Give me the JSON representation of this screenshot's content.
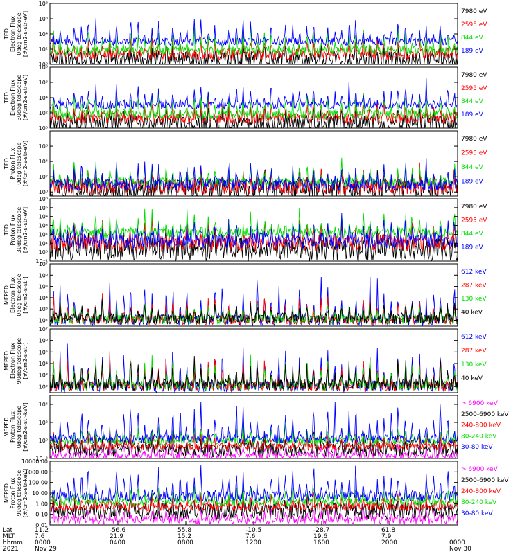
{
  "colors": {
    "black": "#000000",
    "red": "#ff0000",
    "green": "#00dd00",
    "blue": "#0000ff",
    "magenta": "#ff00ff"
  },
  "chart_data": [
    {
      "type": "line",
      "log_scale": true,
      "ylabel_lines": [
        "TED",
        "Electron Flux",
        "0deg telescope",
        "[#/cm2-s-str-eV]"
      ],
      "yticks": [
        {
          "v": 1,
          "t": "10⁰"
        },
        {
          "v": 100,
          "t": "10²"
        },
        {
          "v": 10000,
          "t": "10⁴"
        },
        {
          "v": 1000000,
          "t": "10⁶"
        },
        {
          "v": 100000000,
          "t": "10⁸"
        }
      ],
      "ylim": [
        1,
        100000000
      ],
      "series": [
        {
          "name": "7980 eV",
          "color": "black",
          "base": 3,
          "peak": 300,
          "noise": 1.2
        },
        {
          "name": "2595 eV",
          "color": "red",
          "base": 20,
          "peak": 5000,
          "noise": 0.7
        },
        {
          "name": "844 eV",
          "color": "green",
          "base": 60,
          "peak": 100000,
          "noise": 0.6
        },
        {
          "name": "189 eV",
          "color": "blue",
          "base": 1000,
          "peak": 1000000,
          "noise": 0.5
        }
      ]
    },
    {
      "type": "line",
      "log_scale": true,
      "ylabel_lines": [
        "TED",
        "Electron Flux",
        "30deg telescope",
        "[#/cm2-s-str-eV]"
      ],
      "yticks": [
        {
          "v": 1,
          "t": "10⁰"
        },
        {
          "v": 100,
          "t": "10²"
        },
        {
          "v": 10000,
          "t": "10⁴"
        },
        {
          "v": 1000000,
          "t": "10⁶"
        },
        {
          "v": 100000000,
          "t": "10⁸"
        }
      ],
      "ylim": [
        1,
        100000000
      ],
      "series": [
        {
          "name": "7980 eV",
          "color": "black",
          "base": 3,
          "peak": 300,
          "noise": 1.2
        },
        {
          "name": "2595 eV",
          "color": "red",
          "base": 20,
          "peak": 5000,
          "noise": 0.7
        },
        {
          "name": "844 eV",
          "color": "green",
          "base": 60,
          "peak": 100000,
          "noise": 0.6
        },
        {
          "name": "189 eV",
          "color": "blue",
          "base": 1000,
          "peak": 1000000,
          "noise": 0.5
        }
      ]
    },
    {
      "type": "line",
      "log_scale": true,
      "ylabel_lines": [
        "TED",
        "Proton Flux",
        "0deg telescope",
        "[#/cm2-s-str-eV]"
      ],
      "yticks": [
        {
          "v": 1,
          "t": "10⁰"
        },
        {
          "v": 100,
          "t": "10²"
        },
        {
          "v": 10000,
          "t": "10⁴"
        },
        {
          "v": 1000000,
          "t": "10⁶"
        }
      ],
      "ylim": [
        0.3,
        100000000
      ],
      "series": [
        {
          "name": "7980 eV",
          "color": "black",
          "base": 2,
          "peak": 300,
          "noise": 1.3
        },
        {
          "name": "2595 eV",
          "color": "red",
          "base": 5,
          "peak": 1000,
          "noise": 1.0
        },
        {
          "name": "844 eV",
          "color": "green",
          "base": 20,
          "peak": 10000,
          "noise": 0.6
        },
        {
          "name": "189 eV",
          "color": "blue",
          "base": 10,
          "peak": 10000,
          "noise": 0.8
        }
      ]
    },
    {
      "type": "line",
      "log_scale": true,
      "ylabel_lines": [
        "TED",
        "Proton Flux",
        "30deg telescope",
        "[#/cm2-s-str-eV]"
      ],
      "yticks": [
        {
          "v": 0.1,
          "t": "10⁻¹"
        },
        {
          "v": 1,
          "t": "10⁰"
        },
        {
          "v": 10,
          "t": "10¹"
        },
        {
          "v": 100,
          "t": "10²"
        },
        {
          "v": 1000,
          "t": "10³"
        },
        {
          "v": 10000,
          "t": "10⁴"
        },
        {
          "v": 100000,
          "t": "10⁵"
        },
        {
          "v": 1000000,
          "t": "10⁶"
        }
      ],
      "ylim": [
        0.1,
        1000000
      ],
      "series": [
        {
          "name": "7980 eV",
          "color": "black",
          "base": 2,
          "peak": 200,
          "noise": 1.3
        },
        {
          "name": "2595 eV",
          "color": "red",
          "base": 10,
          "peak": 3000,
          "noise": 0.9
        },
        {
          "name": "844 eV",
          "color": "green",
          "base": 150,
          "peak": 30000,
          "noise": 0.6
        },
        {
          "name": "189 eV",
          "color": "blue",
          "base": 20,
          "peak": 5000,
          "noise": 0.9
        }
      ]
    },
    {
      "type": "line",
      "log_scale": true,
      "ylabel_lines": [
        "MEPED",
        "Electron Flux",
        "0deg telescope",
        "[#/cm2-s-str]"
      ],
      "yticks": [
        {
          "v": 100,
          "t": "10²"
        },
        {
          "v": 1000,
          "t": "10³"
        },
        {
          "v": 10000,
          "t": "10⁴"
        },
        {
          "v": 100000,
          "t": "10⁵"
        },
        {
          "v": 1000000,
          "t": "10⁶"
        },
        {
          "v": 10000000,
          "t": "10⁷"
        }
      ],
      "ylim": [
        30,
        10000000
      ],
      "series": [
        {
          "name": "612 keV",
          "color": "blue",
          "base": 100,
          "peak": 500000,
          "noise": 0.5
        },
        {
          "name": "287 keV",
          "color": "red",
          "base": 100,
          "peak": 20000,
          "noise": 0.4
        },
        {
          "name": "130 keV",
          "color": "green",
          "base": 120,
          "peak": 5000,
          "noise": 0.4
        },
        {
          "name": "40 keV",
          "color": "black",
          "base": 150,
          "peak": 3000,
          "noise": 0.5
        }
      ]
    },
    {
      "type": "line",
      "log_scale": true,
      "ylabel_lines": [
        "MEPED",
        "Electron Flux",
        "90deg telescope",
        "[#/cm2-s-str]"
      ],
      "yticks": [
        {
          "v": 100,
          "t": "10²"
        },
        {
          "v": 1000,
          "t": "10³"
        },
        {
          "v": 10000,
          "t": "10⁴"
        },
        {
          "v": 100000,
          "t": "10⁵"
        },
        {
          "v": 1000000,
          "t": "10⁶"
        },
        {
          "v": 10000000,
          "t": "10⁷"
        }
      ],
      "ylim": [
        30,
        10000000
      ],
      "series": [
        {
          "name": "612 keV",
          "color": "blue",
          "base": 100,
          "peak": 300000,
          "noise": 0.5
        },
        {
          "name": "287 keV",
          "color": "red",
          "base": 100,
          "peak": 100000,
          "noise": 0.4
        },
        {
          "name": "130 keV",
          "color": "green",
          "base": 120,
          "peak": 50000,
          "noise": 0.4
        },
        {
          "name": "40 keV",
          "color": "black",
          "base": 150,
          "peak": 20000,
          "noise": 0.5
        }
      ]
    },
    {
      "type": "line",
      "log_scale": true,
      "ylabel_lines": [
        "MEPED",
        "Proton Flux",
        "0deg telescope",
        "[#/cm2-s-str-keV]"
      ],
      "yticks": [
        {
          "v": 0.01,
          "t": "10⁻²"
        },
        {
          "v": 1,
          "t": "10⁰"
        },
        {
          "v": 100,
          "t": "10²"
        },
        {
          "v": 10000,
          "t": "10⁴"
        }
      ],
      "ylim": [
        0.01,
        100000
      ],
      "series": [
        {
          "name": "> 6900 keV",
          "color": "magenta",
          "base": 0.02,
          "peak": 0.5,
          "noise": 0.4
        },
        {
          "name": "2500-6900 keV",
          "color": "black",
          "base": 0.1,
          "peak": 5,
          "noise": 0.8
        },
        {
          "name": "240-800 keV",
          "color": "red",
          "base": 0.2,
          "peak": 10,
          "noise": 0.4
        },
        {
          "name": "80-240 keV",
          "color": "green",
          "base": 0.8,
          "peak": 50,
          "noise": 0.4
        },
        {
          "name": "30-80 keV",
          "color": "blue",
          "base": 1.5,
          "peak": 10000,
          "noise": 0.5
        }
      ]
    },
    {
      "type": "line",
      "log_scale": true,
      "ylabel_lines": [
        "MEPED",
        "Proton Flux",
        "90deg telescope",
        "[#/cm2-s-str-keV]"
      ],
      "yticks": [
        {
          "v": 0.01,
          "t": "0.01"
        },
        {
          "v": 0.1,
          "t": "0.10"
        },
        {
          "v": 1,
          "t": "1.00"
        },
        {
          "v": 10,
          "t": "10.00"
        },
        {
          "v": 100,
          "t": "100.00"
        },
        {
          "v": 1000,
          "t": "1000.00"
        },
        {
          "v": 10000,
          "t": "10000.00"
        }
      ],
      "ylim": [
        0.01,
        10000
      ],
      "series": [
        {
          "name": "> 6900 keV",
          "color": "magenta",
          "base": 0.03,
          "peak": 0.5,
          "noise": 0.4
        },
        {
          "name": "2500-6900 keV",
          "color": "black",
          "base": 0.2,
          "peak": 5,
          "noise": 0.8
        },
        {
          "name": "240-800 keV",
          "color": "red",
          "base": 0.5,
          "peak": 10,
          "noise": 0.4
        },
        {
          "name": "80-240 keV",
          "color": "green",
          "base": 1.5,
          "peak": 50,
          "noise": 0.4
        },
        {
          "name": "30-80 keV",
          "color": "blue",
          "base": 5,
          "peak": 3000,
          "noise": 0.5
        }
      ]
    }
  ],
  "x_axis": {
    "row_labels": [
      "Lat",
      "MLT",
      "hhmm",
      "2021"
    ],
    "ticks": [
      {
        "lat": "11.2",
        "mlt": "7.6",
        "hhmm": "0000",
        "date": "Nov 29"
      },
      {
        "lat": "-56.6",
        "mlt": "21.9",
        "hhmm": "0400",
        "date": ""
      },
      {
        "lat": "55.8",
        "mlt": "15.2",
        "hhmm": "0800",
        "date": ""
      },
      {
        "lat": "-10.5",
        "mlt": "7.6",
        "hhmm": "1200",
        "date": ""
      },
      {
        "lat": "-28.7",
        "mlt": "19.6",
        "hhmm": "1600",
        "date": ""
      },
      {
        "lat": "61.8",
        "mlt": "7.9",
        "hhmm": "2000",
        "date": ""
      },
      {
        "lat": "",
        "mlt": "",
        "hhmm": "0000",
        "date": "Nov 30"
      }
    ]
  }
}
